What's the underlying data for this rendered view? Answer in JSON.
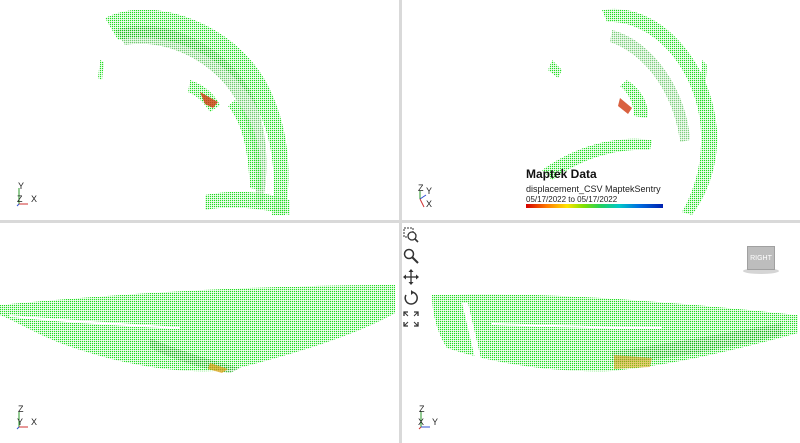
{
  "legend": {
    "title": "Maptek Data",
    "subtitle": "displacement_CSV MaptekSentry",
    "date_range": "05/17/2022 to 05/17/2022",
    "gradient_colors": [
      "#d40000",
      "#ff7a00",
      "#ffe400",
      "#7fe000",
      "#20d060",
      "#00c8c8",
      "#0070e0",
      "#0020b0"
    ]
  },
  "viewports": {
    "top_left": {
      "axis_up": "Y",
      "axis_out": "Z",
      "axis_right": "X"
    },
    "top_right": {
      "axis_up": "Z",
      "axis_mid": "Y",
      "axis_bottom": "X"
    },
    "bottom_left": {
      "axis_up": "Z",
      "axis_out": "Y",
      "axis_right": "X"
    },
    "bottom_right": {
      "axis_up": "Z",
      "axis_out": "X",
      "axis_right": "Y"
    }
  },
  "tools": {
    "zoom_box": "zoom-region-icon",
    "zoom": "magnifier-icon",
    "pan": "pan-arrows-icon",
    "rotate": "rotate-icon",
    "fit": "fit-extents-icon"
  },
  "view_cube": {
    "label": "RIGHT"
  },
  "colors": {
    "cloud_green": "#22dd22",
    "cloud_dark": "#0fa10f",
    "divider": "#d9d9d9"
  }
}
